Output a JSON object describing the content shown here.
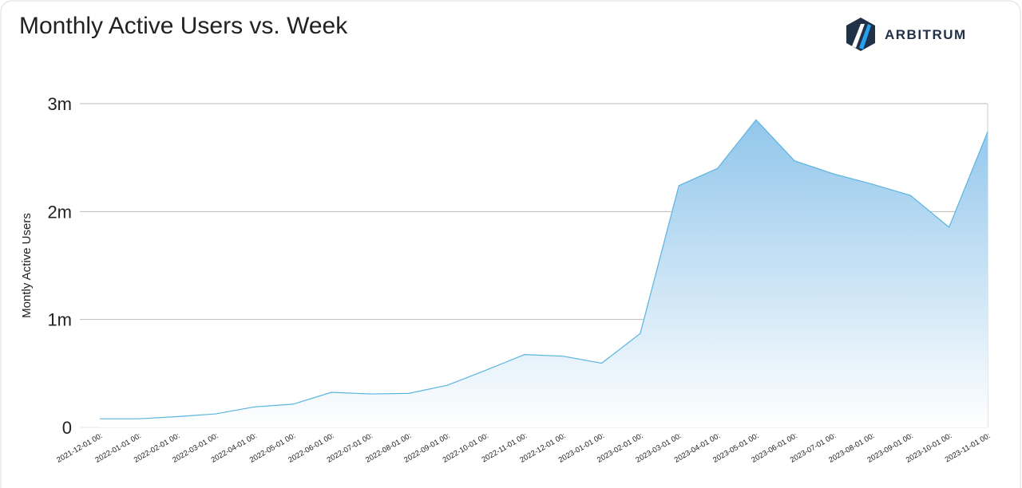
{
  "chart_data": {
    "type": "area",
    "title": "Monthly Active Users vs. Week",
    "brand": "ARBITRUM",
    "y_label": "Montly Active Users",
    "categories": [
      "2021-12-01 00:",
      "2022-01-01 00:",
      "2022-02-01 00:",
      "2022-03-01 00:",
      "2022-04-01 00:",
      "2022-05-01 00:",
      "2022-06-01 00:",
      "2022-07-01 00:",
      "2022-08-01 00:",
      "2022-09-01 00:",
      "2022-10-01 00:",
      "2022-11-01 00:",
      "2022-12-01 00:",
      "2023-01-01 00:",
      "2023-02-01 00:",
      "2023-03-01 00:",
      "2023-04-01 00:",
      "2023-05-01 00:",
      "2023-06-01 00:",
      "2023-07-01 00:",
      "2023-08-01 00:",
      "2023-09-01 00:",
      "2023-10-01 00:",
      "2023-11-01 00:"
    ],
    "values": [
      80000,
      80000,
      100000,
      125000,
      190000,
      215000,
      325000,
      310000,
      315000,
      390000,
      530000,
      675000,
      660000,
      595000,
      870000,
      2240000,
      2400000,
      2850000,
      2470000,
      2350000,
      2255000,
      2150000,
      1855000,
      2740000
    ],
    "color": "#5ab4e0",
    "ylim": [
      0,
      3000000
    ],
    "yticks": [
      0,
      {
        "value": 1000000,
        "label": "1m"
      },
      {
        "value": 2000000,
        "label": "2m"
      },
      {
        "value": 3000000,
        "label": "3m"
      }
    ],
    "grid": true
  }
}
